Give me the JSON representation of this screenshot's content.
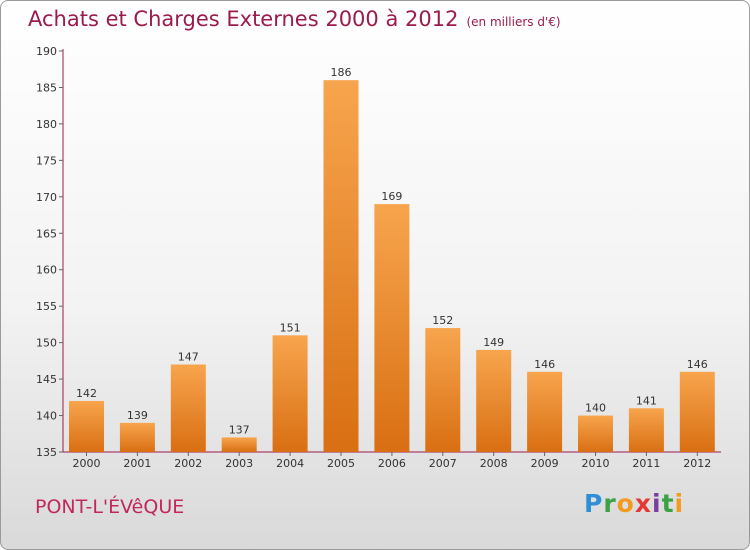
{
  "title": "Achats et Charges Externes 2000 à 2012",
  "subtitle": "(en milliers d'€)",
  "city": "PONT-L'ÉVêQUE",
  "logo": {
    "letters": [
      "P",
      "r",
      "o",
      "x",
      "i",
      "t",
      "i"
    ],
    "colors": [
      "#2e8fd6",
      "#3aa244",
      "#f39b1f",
      "#e53935",
      "#7b3fa0",
      "#3aa244",
      "#f39b1f"
    ]
  },
  "colors": {
    "bar_top": "#f7a54e",
    "bar_bottom": "#d96f12",
    "title": "#9b1b4e",
    "axis": "#9b1b4e"
  },
  "chart_data": {
    "type": "bar",
    "categories": [
      "2000",
      "2001",
      "2002",
      "2003",
      "2004",
      "2005",
      "2006",
      "2007",
      "2008",
      "2009",
      "2010",
      "2011",
      "2012"
    ],
    "values": [
      142,
      139,
      147,
      137,
      151,
      186,
      169,
      152,
      149,
      146,
      140,
      141,
      146
    ],
    "yticks": [
      135,
      140,
      145,
      150,
      155,
      160,
      165,
      170,
      175,
      180,
      185,
      190
    ],
    "ylim": [
      135,
      190
    ],
    "grid": false
  }
}
